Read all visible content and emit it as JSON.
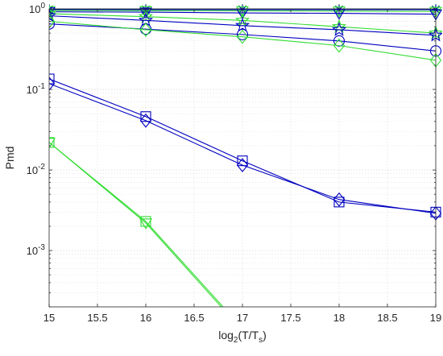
{
  "chart_data": {
    "type": "line",
    "xlabel": "log",
    "xlabel_sub": "2",
    "xlabel_paren": "(T/T",
    "xlabel_sub2": "s",
    "xlabel_close": ")",
    "ylabel": "Pmd",
    "xlim": [
      15,
      19
    ],
    "ylim": [
      0.0002,
      1
    ],
    "y_scale": "log",
    "grid": true,
    "x_ticks": [
      "15",
      "15.5",
      "16",
      "16.5",
      "17",
      "17.5",
      "18",
      "18.5",
      "19"
    ],
    "y_ticks": [
      {
        "value": 0.001,
        "base": "10",
        "exp": "-3"
      },
      {
        "value": 0.01,
        "base": "10",
        "exp": "-2"
      },
      {
        "value": 0.1,
        "base": "10",
        "exp": "-1"
      },
      {
        "value": 1,
        "base": "10",
        "exp": "0"
      }
    ],
    "colors": {
      "blue": "#0000c0",
      "green": "#33dd33"
    },
    "series": [
      {
        "color": "green",
        "marker": "asterisk",
        "x": [
          15,
          16,
          17,
          18,
          19
        ],
        "y": [
          0.99,
          0.99,
          0.99,
          0.99,
          0.99
        ]
      },
      {
        "color": "blue",
        "marker": "asterisk",
        "x": [
          15,
          16,
          17,
          18,
          19
        ],
        "y": [
          0.975,
          0.975,
          0.975,
          0.975,
          0.975
        ]
      },
      {
        "color": "green",
        "marker": "triangle-down",
        "x": [
          15,
          16,
          17,
          18,
          19
        ],
        "y": [
          0.955,
          0.95,
          0.945,
          0.94,
          0.93
        ]
      },
      {
        "color": "blue",
        "marker": "triangle-down",
        "x": [
          15,
          16,
          17,
          18,
          19
        ],
        "y": [
          0.92,
          0.91,
          0.89,
          0.88,
          0.86
        ]
      },
      {
        "color": "green",
        "marker": "pentagram",
        "x": [
          15,
          16,
          17,
          18,
          19
        ],
        "y": [
          0.87,
          0.8,
          0.72,
          0.6,
          0.5
        ]
      },
      {
        "color": "blue",
        "marker": "pentagram",
        "x": [
          15,
          16,
          17,
          18,
          19
        ],
        "y": [
          0.82,
          0.72,
          0.62,
          0.55,
          0.47
        ]
      },
      {
        "color": "blue",
        "marker": "circle",
        "x": [
          15,
          16,
          17,
          18,
          19
        ],
        "y": [
          0.65,
          0.56,
          0.48,
          0.4,
          0.3
        ]
      },
      {
        "color": "green",
        "marker": "diamond",
        "x": [
          15,
          16,
          17,
          18,
          19
        ],
        "y": [
          0.7,
          0.55,
          0.45,
          0.35,
          0.23
        ]
      },
      {
        "color": "blue",
        "marker": "square",
        "x": [
          15,
          16,
          17,
          18,
          19
        ],
        "y": [
          0.135,
          0.046,
          0.013,
          0.004,
          0.003
        ]
      },
      {
        "color": "blue",
        "marker": "diamond",
        "x": [
          15,
          16,
          17,
          18,
          19
        ],
        "y": [
          0.118,
          0.041,
          0.0115,
          0.0043,
          0.0029
        ]
      },
      {
        "color": "green",
        "marker": "square",
        "x": [
          15,
          16,
          16.8
        ],
        "y": [
          0.022,
          0.0023,
          0.0002
        ]
      },
      {
        "color": "green",
        "marker": "triangle-down",
        "x": [
          15,
          16,
          16.78
        ],
        "y": [
          0.022,
          0.0022,
          0.0002
        ]
      }
    ]
  }
}
